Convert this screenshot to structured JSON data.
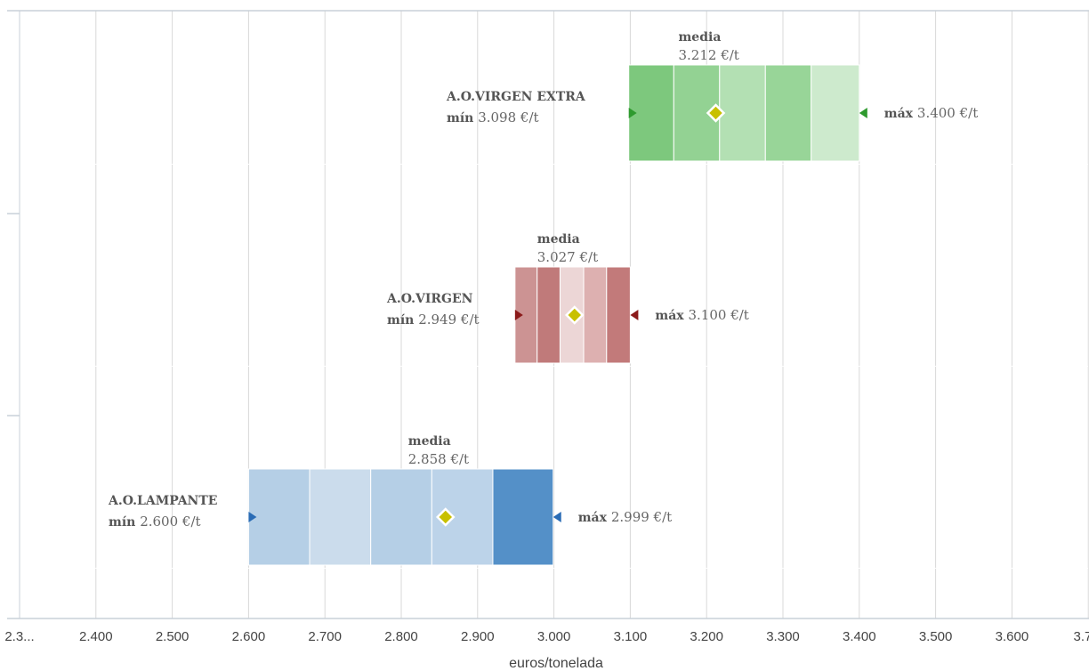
{
  "chart_data": {
    "type": "range-bar",
    "xlabel": "euros/tonelada",
    "x_tick_labels": [
      "2.3...",
      "2.400",
      "2.500",
      "2.600",
      "2.700",
      "2.800",
      "2.900",
      "3.000",
      "3.100",
      "3.200",
      "3.300",
      "3.400",
      "3.500",
      "3.600",
      "3.7..."
    ],
    "xlim": [
      2300,
      3700
    ],
    "grid": true,
    "series": [
      {
        "name": "A.O.VIRGEN EXTRA",
        "min": 3098,
        "min_label": "3.098 €/t",
        "mean": 3212,
        "mean_label": "3.212 €/t",
        "max": 3400,
        "max_label": "3.400 €/t",
        "segments": [
          3098,
          3157,
          3217,
          3277,
          3337,
          3400
        ],
        "segment_colors": [
          "#7dc87d",
          "#93d293",
          "#b3e0b3",
          "#98d598",
          "#cdeacd"
        ],
        "marker_color": "#2e9a2e"
      },
      {
        "name": "A.O.VIRGEN",
        "min": 2949,
        "min_label": "2.949 €/t",
        "mean": 3027,
        "mean_label": "3.027 €/t",
        "max": 3100,
        "max_label": "3.100 €/t",
        "segments": [
          2949,
          2978,
          3008,
          3039,
          3069,
          3100
        ],
        "segment_colors": [
          "#cc9393",
          "#c07a7a",
          "#ecd6d6",
          "#ddb0b0",
          "#c27a7a"
        ],
        "marker_color": "#8b1a1a"
      },
      {
        "name": "A.O.LAMPANTE",
        "min": 2600,
        "min_label": "2.600 €/t",
        "mean": 2858,
        "mean_label": "2.858 €/t",
        "max": 2999,
        "max_label": "2.999 €/t",
        "segments": [
          2600,
          2680,
          2760,
          2840,
          2920,
          2999
        ],
        "segment_colors": [
          "#b5cfe6",
          "#cbdcec",
          "#b5cfe6",
          "#bcd3e9",
          "#5490c8"
        ],
        "marker_color": "#2a6cb5"
      }
    ],
    "labels": {
      "media": "media",
      "min": "mín",
      "max": "máx"
    }
  }
}
